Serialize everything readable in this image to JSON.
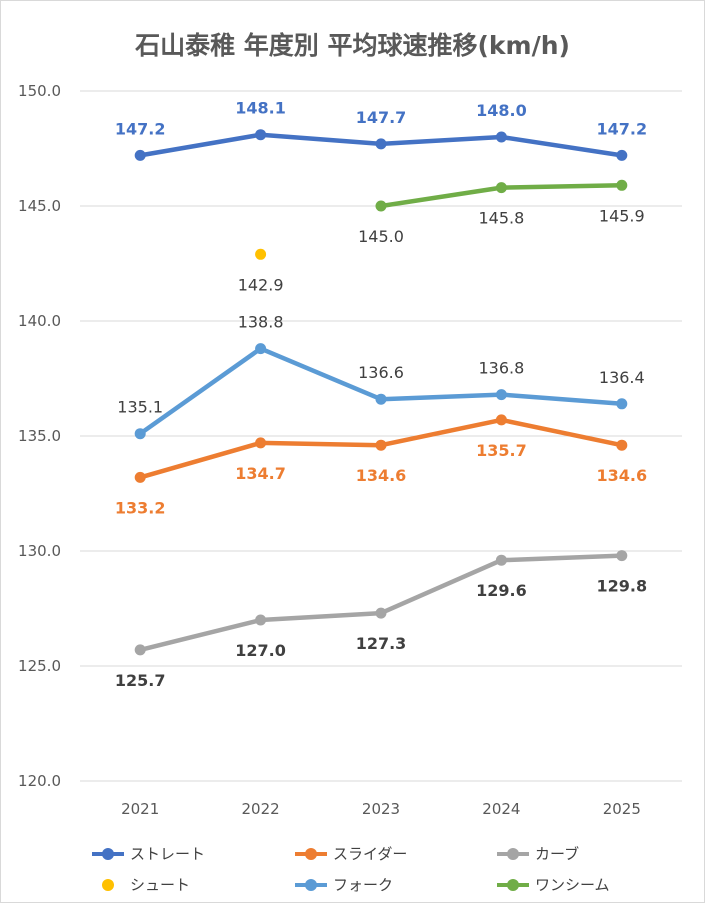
{
  "chart_data": {
    "type": "line",
    "title": "石山泰稚 年度別 平均球速推移(km/h)",
    "xlabel": "",
    "ylabel": "",
    "categories": [
      "2021",
      "2022",
      "2023",
      "2024",
      "2025"
    ],
    "ylim": [
      120.0,
      150.0
    ],
    "yticks": [
      "120.0",
      "125.0",
      "130.0",
      "135.0",
      "140.0",
      "145.0",
      "150.0"
    ],
    "grid": true,
    "legend_position": "bottom",
    "series": [
      {
        "name": "ストレート",
        "color": "#4472c4",
        "values": [
          147.2,
          148.1,
          147.7,
          148.0,
          147.2
        ],
        "labels": [
          "147.2",
          "148.1",
          "147.7",
          "148.0",
          "147.2"
        ],
        "label_color": "#4472c4",
        "label_pos": "above"
      },
      {
        "name": "スライダー",
        "color": "#ed7d31",
        "values": [
          133.2,
          134.7,
          134.6,
          135.7,
          134.6
        ],
        "labels": [
          "133.2",
          "134.7",
          "134.6",
          "135.7",
          "134.6"
        ],
        "label_color": "#ed7d31",
        "label_pos": "below"
      },
      {
        "name": "カーブ",
        "color": "#a5a5a5",
        "values": [
          125.7,
          127.0,
          127.3,
          129.6,
          129.8
        ],
        "labels": [
          "125.7",
          "127.0",
          "127.3",
          "129.6",
          "129.8"
        ],
        "label_color": "#404040",
        "label_pos": "below"
      },
      {
        "name": "シュート",
        "color": "#ffc000",
        "values": [
          null,
          142.9,
          null,
          null,
          null
        ],
        "labels": [
          null,
          "142.9",
          null,
          null,
          null
        ],
        "label_color": "#404040",
        "label_pos": "below"
      },
      {
        "name": "フォーク",
        "color": "#5b9bd5",
        "values": [
          135.1,
          138.8,
          136.6,
          136.8,
          136.4
        ],
        "labels": [
          "135.1",
          "138.8",
          "136.6",
          "136.8",
          "136.4"
        ],
        "label_color": "#404040",
        "label_pos": "above"
      },
      {
        "name": "ワンシーム",
        "color": "#70ad47",
        "values": [
          null,
          null,
          145.0,
          145.8,
          145.9
        ],
        "labels": [
          null,
          null,
          "145.0",
          "145.8",
          "145.9"
        ],
        "label_color": "#404040",
        "label_pos": "below"
      }
    ]
  }
}
